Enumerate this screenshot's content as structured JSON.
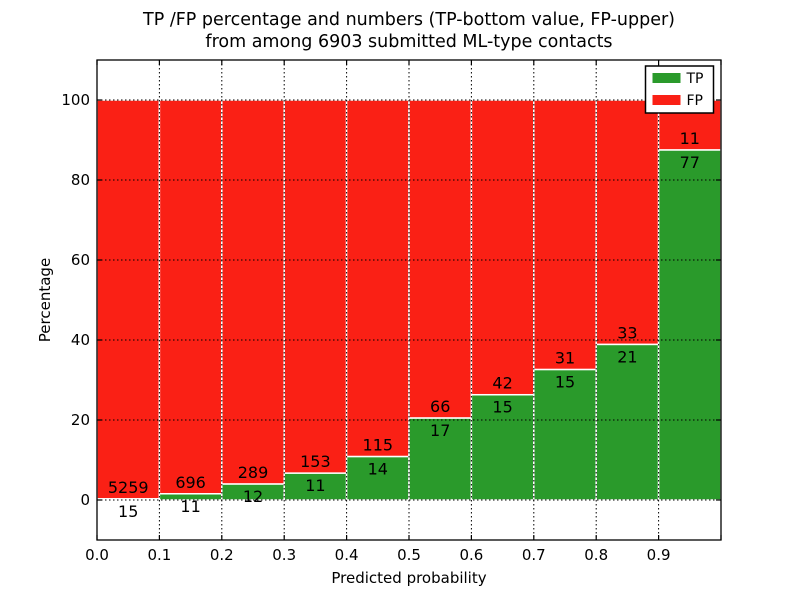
{
  "figure": {
    "title_line1": "TP /FP percentage and numbers (TP-bottom value, FP-upper)",
    "title_line2": "from among 6903 submitted ML-type contacts"
  },
  "chart_data": {
    "type": "bar",
    "stacked": true,
    "stack_normalized_to_percent": 100,
    "title": "TP /FP percentage and numbers (TP-bottom value, FP-upper) from among 6903 submitted ML-type contacts",
    "total_contacts": 6903,
    "xlabel": "Predicted probability",
    "ylabel": "Percentage",
    "x_bin_starts": [
      0.0,
      0.1,
      0.2,
      0.3,
      0.4,
      0.5,
      0.6,
      0.7,
      0.8,
      0.9
    ],
    "bin_width": 0.1,
    "xtick_labels": [
      "0.0",
      "0.1",
      "0.2",
      "0.3",
      "0.4",
      "0.5",
      "0.6",
      "0.7",
      "0.8",
      "0.9"
    ],
    "ytick_values": [
      0,
      20,
      40,
      60,
      80,
      100
    ],
    "xlim": [
      0.0,
      1.0
    ],
    "ylim": [
      -10,
      110
    ],
    "grid": {
      "style": "dotted",
      "color": "#000000"
    },
    "bar_edge_color": "#ffffff",
    "series": [
      {
        "name": "TP",
        "position": "bottom",
        "color": "#2a9a2b",
        "counts": [
          15,
          11,
          12,
          11,
          14,
          17,
          15,
          15,
          21,
          77
        ]
      },
      {
        "name": "FP",
        "position": "top",
        "color": "#fa2015",
        "counts": [
          5259,
          696,
          289,
          153,
          115,
          66,
          42,
          31,
          33,
          11
        ]
      }
    ],
    "legend": {
      "position": "upper-right",
      "entries": [
        {
          "label": "TP",
          "color": "#2a9a2b"
        },
        {
          "label": "FP",
          "color": "#fa2015"
        }
      ]
    }
  }
}
